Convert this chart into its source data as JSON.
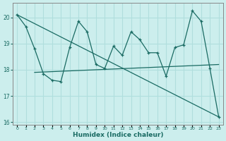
{
  "xlabel": "Humidex (Indice chaleur)",
  "bg_color": "#cceeed",
  "grid_color": "#b0dedd",
  "line_color": "#1a6b63",
  "x_values": [
    0,
    1,
    2,
    3,
    4,
    5,
    6,
    7,
    8,
    9,
    10,
    11,
    12,
    13,
    14,
    15,
    16,
    17,
    18,
    19,
    20,
    21,
    22,
    23
  ],
  "line1": [
    20.1,
    19.65,
    18.8,
    17.85,
    17.6,
    17.55,
    18.85,
    19.85,
    19.45,
    18.2,
    18.05,
    18.9,
    18.55,
    19.45,
    19.15,
    18.65,
    18.65,
    17.75,
    18.85,
    18.95,
    20.25,
    19.85,
    18.05,
    16.2
  ],
  "line2_x": [
    2,
    23
  ],
  "line2_y": [
    17.9,
    18.2
  ],
  "line3_x": [
    0,
    23
  ],
  "line3_y": [
    20.1,
    16.2
  ],
  "ylim": [
    15.9,
    20.55
  ],
  "yticks": [
    16,
    17,
    18,
    19,
    20
  ],
  "xlim": [
    -0.5,
    23.5
  ]
}
